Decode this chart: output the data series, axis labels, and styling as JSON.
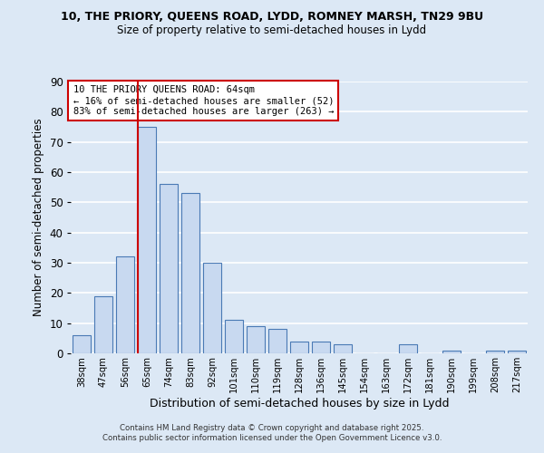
{
  "title_line1": "10, THE PRIORY, QUEENS ROAD, LYDD, ROMNEY MARSH, TN29 9BU",
  "title_line2": "Size of property relative to semi-detached houses in Lydd",
  "xlabel": "Distribution of semi-detached houses by size in Lydd",
  "ylabel": "Number of semi-detached properties",
  "bar_labels": [
    "38sqm",
    "47sqm",
    "56sqm",
    "65sqm",
    "74sqm",
    "83sqm",
    "92sqm",
    "101sqm",
    "110sqm",
    "119sqm",
    "128sqm",
    "136sqm",
    "145sqm",
    "154sqm",
    "163sqm",
    "172sqm",
    "181sqm",
    "190sqm",
    "199sqm",
    "208sqm",
    "217sqm"
  ],
  "bar_values": [
    6,
    19,
    32,
    75,
    56,
    53,
    30,
    11,
    9,
    8,
    4,
    4,
    3,
    0,
    0,
    3,
    0,
    1,
    0,
    1,
    1
  ],
  "bar_color": "#c8d9f0",
  "bar_edge_color": "#4a7ab5",
  "vline_color": "#cc0000",
  "vline_xindex": 3,
  "ylim": [
    0,
    90
  ],
  "yticks": [
    0,
    10,
    20,
    30,
    40,
    50,
    60,
    70,
    80,
    90
  ],
  "annotation_title": "10 THE PRIORY QUEENS ROAD: 64sqm",
  "annotation_line1": "← 16% of semi-detached houses are smaller (52)",
  "annotation_line2": "83% of semi-detached houses are larger (263) →",
  "annotation_box_color": "#ffffff",
  "annotation_border_color": "#cc0000",
  "footer_line1": "Contains HM Land Registry data © Crown copyright and database right 2025.",
  "footer_line2": "Contains public sector information licensed under the Open Government Licence v3.0.",
  "background_color": "#dce8f5",
  "grid_color": "#ffffff"
}
